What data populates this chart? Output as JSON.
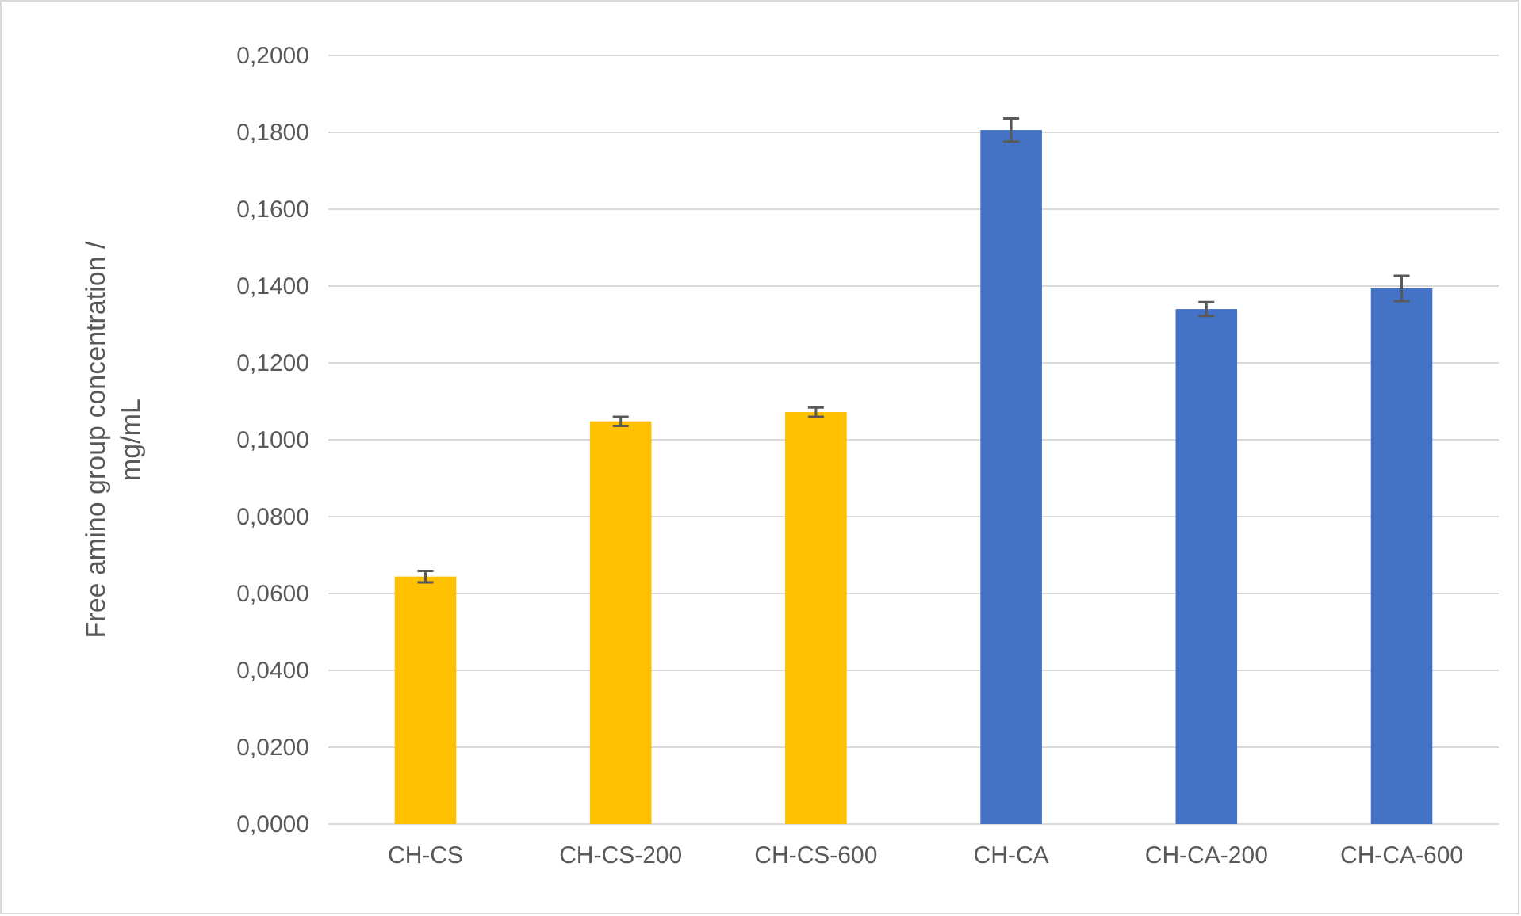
{
  "chart_data": {
    "type": "bar",
    "ylabel": "Free amino group concentration / mg/mL",
    "categories": [
      "CH-CS",
      "CH-CS-200",
      "CH-CS-600",
      "CH-CA",
      "CH-CA-200",
      "CH-CA-600"
    ],
    "values": [
      0.0644,
      0.1048,
      0.1072,
      0.1806,
      0.134,
      0.1394
    ],
    "errors": [
      0.0015,
      0.0012,
      0.0012,
      0.003,
      0.0018,
      0.0033
    ],
    "colors": [
      "#ffc000",
      "#ffc000",
      "#ffc000",
      "#4472c4",
      "#4472c4",
      "#4472c4"
    ],
    "ylim": [
      0,
      0.2
    ],
    "yticks": [
      {
        "value": 0,
        "label": "0,0000"
      },
      {
        "value": 0.02,
        "label": "0,0200"
      },
      {
        "value": 0.04,
        "label": "0,0400"
      },
      {
        "value": 0.06,
        "label": "0,0600"
      },
      {
        "value": 0.08,
        "label": "0,0800"
      },
      {
        "value": 0.1,
        "label": "0,1000"
      },
      {
        "value": 0.12,
        "label": "0,1200"
      },
      {
        "value": 0.14,
        "label": "0,1400"
      },
      {
        "value": 0.16,
        "label": "0,1600"
      },
      {
        "value": 0.18,
        "label": "0,1800"
      },
      {
        "value": 0.2,
        "label": "0,2000"
      }
    ],
    "grid": "y"
  }
}
